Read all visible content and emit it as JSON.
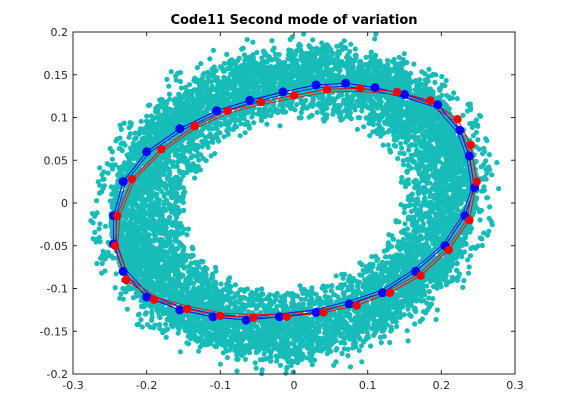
{
  "chart_data": {
    "type": "scatter",
    "title": "Code11 Second mode of variation",
    "xlabel": "",
    "ylabel": "",
    "xlim": [
      -0.3,
      0.3
    ],
    "ylim": [
      -0.2,
      0.2
    ],
    "xticks": [
      "-0.3",
      "-0.2",
      "-0.1",
      "0",
      "0.1",
      "0.2",
      "0.3"
    ],
    "yticks": [
      "0.2",
      "0.15",
      "0.1",
      "0.05",
      "0",
      "-0.05",
      "-0.1",
      "-0.15",
      "-0.2"
    ],
    "grid": false,
    "legend": "none",
    "cloud": {
      "color": "#17bcb8",
      "shape": "elliptical ring",
      "center": [
        0.0,
        0.0
      ],
      "outer_radius": [
        0.25,
        0.17
      ],
      "inner_radius": [
        0.145,
        0.085
      ],
      "tilt_degrees": 8,
      "approx_points": 9000
    },
    "series": [
      {
        "color": "#0000ff",
        "marker": "circle",
        "points": [
          [
            0.245,
            0.018
          ],
          [
            0.238,
            0.055
          ],
          [
            0.225,
            0.085
          ],
          [
            0.195,
            0.115
          ],
          [
            0.15,
            0.127
          ],
          [
            0.11,
            0.135
          ],
          [
            0.07,
            0.14
          ],
          [
            0.03,
            0.138
          ],
          [
            -0.015,
            0.13
          ],
          [
            -0.06,
            0.12
          ],
          [
            -0.105,
            0.108
          ],
          [
            -0.155,
            0.087
          ],
          [
            -0.2,
            0.06
          ],
          [
            -0.232,
            0.025
          ],
          [
            -0.245,
            -0.015
          ],
          [
            -0.245,
            -0.048
          ],
          [
            -0.232,
            -0.08
          ],
          [
            -0.2,
            -0.11
          ],
          [
            -0.155,
            -0.125
          ],
          [
            -0.11,
            -0.133
          ],
          [
            -0.065,
            -0.137
          ],
          [
            -0.02,
            -0.133
          ],
          [
            0.03,
            -0.128
          ],
          [
            0.075,
            -0.118
          ],
          [
            0.12,
            -0.105
          ],
          [
            0.165,
            -0.08
          ],
          [
            0.205,
            -0.05
          ],
          [
            0.232,
            -0.015
          ]
        ]
      },
      {
        "color": "#ff0000",
        "marker": "circle",
        "points": [
          [
            0.248,
            0.025
          ],
          [
            0.24,
            0.068
          ],
          [
            0.222,
            0.098
          ],
          [
            0.185,
            0.12
          ],
          [
            0.14,
            0.13
          ],
          [
            0.09,
            0.134
          ],
          [
            0.045,
            0.133
          ],
          [
            0.0,
            0.126
          ],
          [
            -0.045,
            0.118
          ],
          [
            -0.09,
            0.108
          ],
          [
            -0.135,
            0.09
          ],
          [
            -0.18,
            0.063
          ],
          [
            -0.22,
            0.028
          ],
          [
            -0.24,
            -0.015
          ],
          [
            -0.243,
            -0.05
          ],
          [
            -0.228,
            -0.09
          ],
          [
            -0.19,
            -0.113
          ],
          [
            -0.145,
            -0.124
          ],
          [
            -0.1,
            -0.132
          ],
          [
            -0.055,
            -0.134
          ],
          [
            -0.01,
            -0.133
          ],
          [
            0.04,
            -0.128
          ],
          [
            0.085,
            -0.12
          ],
          [
            0.13,
            -0.105
          ],
          [
            0.172,
            -0.085
          ],
          [
            0.21,
            -0.055
          ],
          [
            0.238,
            -0.02
          ]
        ]
      }
    ]
  }
}
